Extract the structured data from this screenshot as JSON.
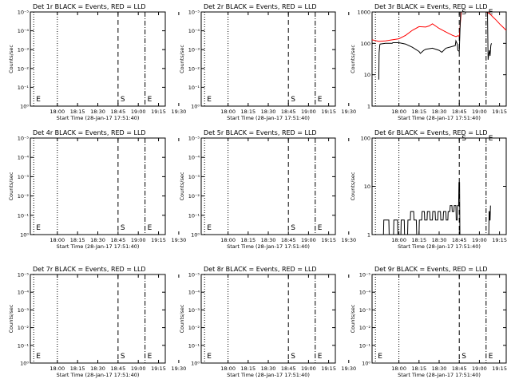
{
  "chart_data": [
    {
      "type": "line",
      "title": "Det 1r BLACK = Events, RED = LLD",
      "xlabel": "Start Time (28-Jan-17 17:51:40)",
      "ylabel": "Counts/sec",
      "y_scale": "linear",
      "ylim": [
        0,
        5
      ],
      "ytick_labels": [
        "10⁰",
        "10⁻¹",
        "10⁻²",
        "10⁻³",
        "10⁻⁴",
        "10⁻⁵"
      ],
      "xlim_min": [
        0,
        40
      ],
      "xtick_labels": [
        "18:00",
        "18:15",
        "18:30",
        "18:45",
        "19:00",
        "19:15",
        "19:30"
      ],
      "markers": [
        {
          "label": "E",
          "t": 1,
          "style": "dotted"
        },
        {
          "label": "",
          "t": 8,
          "style": "dotted"
        },
        {
          "label": "S",
          "t": 26,
          "style": "dashed"
        },
        {
          "label": "E",
          "t": 34,
          "style": "dashdot"
        }
      ],
      "series": []
    },
    {
      "type": "line",
      "title": "Det 2r BLACK = Events, RED = LLD",
      "xlabel": "Start Time (28-Jan-17 17:51:40)",
      "ylabel": "Counts/sec",
      "y_scale": "linear",
      "ylim": [
        0,
        5
      ],
      "ytick_labels": [
        "10⁰",
        "10⁻¹",
        "10⁻²",
        "10⁻³",
        "10⁻⁴",
        "10⁻⁵"
      ],
      "xlim_min": [
        0,
        40
      ],
      "xtick_labels": [
        "18:00",
        "18:15",
        "18:30",
        "18:45",
        "19:00",
        "19:15",
        "19:30"
      ],
      "markers": [
        {
          "label": "E",
          "t": 1,
          "style": "dotted"
        },
        {
          "label": "",
          "t": 8,
          "style": "dotted"
        },
        {
          "label": "S",
          "t": 26,
          "style": "dashed"
        },
        {
          "label": "E",
          "t": 34,
          "style": "dashdot"
        }
      ],
      "series": []
    },
    {
      "type": "line",
      "title": "Det 3r BLACK = Events, RED = LLD",
      "xlabel": "Start Time (28-Jan-17 17:51:40)",
      "ylabel": "Counts/sec",
      "y_scale": "log",
      "ylim": [
        1,
        1000
      ],
      "ytick_labels": [
        "1",
        "10",
        "100",
        "1000"
      ],
      "xlim_min": [
        0,
        40
      ],
      "xtick_labels": [
        "18:00",
        "18:15",
        "18:30",
        "18:45",
        "19:00",
        "19:15",
        "19:30"
      ],
      "markers": [
        {
          "label": "",
          "t": 1,
          "style": "dotted"
        },
        {
          "label": "",
          "t": 8,
          "style": "dotted"
        },
        {
          "label": "S",
          "t": 26,
          "style": "dashed"
        },
        {
          "label": "E",
          "t": 34,
          "style": "dashdot"
        }
      ],
      "series": [
        {
          "color": "#ff0000",
          "x": [
            0,
            2,
            4,
            6,
            8,
            10,
            12,
            14,
            16,
            17,
            18,
            20,
            22,
            24,
            25,
            25.6,
            26,
            26.6,
            27.4,
            28,
            29,
            30,
            31,
            32,
            33,
            34,
            35,
            36,
            37,
            38,
            39,
            40
          ],
          "y": [
            130,
            115,
            120,
            130,
            140,
            180,
            260,
            340,
            330,
            360,
            420,
            300,
            230,
            180,
            165,
            175,
            170,
            1000,
            1000,
            1000,
            1000,
            1000,
            1000,
            1000,
            1000,
            1000,
            900,
            700,
            550,
            420,
            330,
            260
          ]
        },
        {
          "color": "#000000",
          "x": [
            2,
            2.1,
            2.3,
            2.4,
            4,
            6,
            6.2,
            8,
            10,
            12,
            14,
            14.4,
            15.4,
            16,
            18,
            20,
            20.8,
            22,
            24,
            24.8,
            25,
            25.4,
            25.6,
            26,
            26.4,
            27.4,
            28,
            30,
            32,
            33.8,
            34.4,
            34.6,
            34.8,
            35,
            35.2,
            35.4,
            35.6
          ],
          "y": [
            7,
            50,
            90,
            95,
            100,
            100,
            105,
            105,
            95,
            75,
            55,
            48,
            60,
            65,
            70,
            60,
            52,
            70,
            80,
            85,
            120,
            95,
            60,
            55,
            1000,
            1000,
            1000,
            1000,
            1000,
            1000,
            1000,
            30,
            45,
            60,
            40,
            85,
            100
          ]
        }
      ]
    },
    {
      "type": "line",
      "title": "Det 4r BLACK = Events, RED = LLD",
      "xlabel": "Start Time (28-Jan-17 17:51:40)",
      "ylabel": "Counts/sec",
      "y_scale": "linear",
      "ylim": [
        0,
        5
      ],
      "ytick_labels": [
        "10⁰",
        "10⁻¹",
        "10⁻²",
        "10⁻³",
        "10⁻⁴",
        "10⁻⁵"
      ],
      "xlim_min": [
        0,
        40
      ],
      "xtick_labels": [
        "18:00",
        "18:15",
        "18:30",
        "18:45",
        "19:00",
        "19:15",
        "19:30"
      ],
      "markers": [
        {
          "label": "E",
          "t": 1,
          "style": "dotted"
        },
        {
          "label": "",
          "t": 8,
          "style": "dotted"
        },
        {
          "label": "S",
          "t": 26,
          "style": "dashed"
        },
        {
          "label": "E",
          "t": 34,
          "style": "dashdot"
        }
      ],
      "series": []
    },
    {
      "type": "line",
      "title": "Det 5r BLACK = Events, RED = LLD",
      "xlabel": "Start Time (28-Jan-17 17:51:40)",
      "ylabel": "Counts/sec",
      "y_scale": "linear",
      "ylim": [
        0,
        5
      ],
      "ytick_labels": [
        "10⁰",
        "10⁻¹",
        "10⁻²",
        "10⁻³",
        "10⁻⁴",
        "10⁻⁵"
      ],
      "xlim_min": [
        0,
        40
      ],
      "xtick_labels": [
        "18:00",
        "18:15",
        "18:30",
        "18:45",
        "19:00",
        "19:15",
        "19:30"
      ],
      "markers": [
        {
          "label": "E",
          "t": 1,
          "style": "dotted"
        },
        {
          "label": "",
          "t": 8,
          "style": "dotted"
        },
        {
          "label": "S",
          "t": 26,
          "style": "dashed"
        },
        {
          "label": "E",
          "t": 34,
          "style": "dashdot"
        }
      ],
      "series": []
    },
    {
      "type": "line",
      "title": "Det 6r BLACK = Events, RED = LLD",
      "xlabel": "Start Time (28-Jan-17 17:51:40)",
      "ylabel": "Counts/sec",
      "y_scale": "log",
      "ylim": [
        1,
        100
      ],
      "ytick_labels": [
        "1",
        "10",
        "100"
      ],
      "xlim_min": [
        0,
        40
      ],
      "xtick_labels": [
        "18:00",
        "18:15",
        "18:30",
        "18:45",
        "19:00",
        "19:15",
        "19:30"
      ],
      "markers": [
        {
          "label": "",
          "t": 1,
          "style": "dotted"
        },
        {
          "label": "",
          "t": 8,
          "style": "dotted"
        },
        {
          "label": "S",
          "t": 26,
          "style": "dashed"
        },
        {
          "label": "E",
          "t": 34,
          "style": "dashdot"
        }
      ],
      "series": [
        {
          "color": "#000000",
          "x": [
            3.4,
            3.5,
            5,
            5.1,
            6.4,
            6.5,
            7.6,
            7.7,
            8.6,
            8.7,
            9.6,
            9.7,
            10.6,
            10.7,
            11.4,
            11.5,
            12.4,
            12.5,
            13.2,
            13.3,
            14,
            14.1,
            14.8,
            14.9,
            15.6,
            15.7,
            16.4,
            16.5,
            17.2,
            17.3,
            18,
            18.1,
            18.8,
            18.9,
            19.6,
            19.7,
            20.4,
            20.5,
            21.2,
            21.3,
            22,
            22.1,
            22.6,
            22.7,
            23.2,
            23.3,
            23.8,
            23.9,
            24.4,
            24.5,
            25,
            25.1,
            25.4,
            25.5,
            25.8,
            25.9,
            26.1,
            26.2,
            34.8,
            34.9,
            35,
            35.1,
            35.2,
            35.3
          ],
          "y": [
            1,
            2,
            2,
            1,
            1,
            2,
            2,
            1,
            1,
            2,
            2,
            1,
            1,
            2,
            2,
            3,
            3,
            2,
            2,
            1,
            1,
            2,
            2,
            3,
            3,
            2,
            2,
            3,
            3,
            2,
            2,
            3,
            3,
            2,
            2,
            3,
            3,
            2,
            2,
            3,
            3,
            2,
            2,
            3,
            3,
            4,
            4,
            3,
            3,
            4,
            4,
            2,
            2,
            4,
            4,
            12,
            12,
            1,
            1,
            3,
            3,
            2,
            2,
            4
          ]
        }
      ]
    },
    {
      "type": "line",
      "title": "Det 7r BLACK = Events, RED = LLD",
      "xlabel": "Start Time (28-Jan-17 17:51:40)",
      "ylabel": "Counts/sec",
      "y_scale": "linear",
      "ylim": [
        0,
        5
      ],
      "ytick_labels": [
        "10⁰",
        "10⁻¹",
        "10⁻²",
        "10⁻³",
        "10⁻⁴",
        "10⁻⁵"
      ],
      "xlim_min": [
        0,
        40
      ],
      "xtick_labels": [
        "18:00",
        "18:15",
        "18:30",
        "18:45",
        "19:00",
        "19:15",
        "19:30"
      ],
      "markers": [
        {
          "label": "E",
          "t": 1,
          "style": "dotted"
        },
        {
          "label": "",
          "t": 8,
          "style": "dotted"
        },
        {
          "label": "S",
          "t": 26,
          "style": "dashed"
        },
        {
          "label": "E",
          "t": 34,
          "style": "dashdot"
        }
      ],
      "series": []
    },
    {
      "type": "line",
      "title": "Det 8r BLACK = Events, RED = LLD",
      "xlabel": "Start Time (28-Jan-17 17:51:40)",
      "ylabel": "Counts/sec",
      "y_scale": "linear",
      "ylim": [
        0,
        5
      ],
      "ytick_labels": [
        "10⁰",
        "10⁻¹",
        "10⁻²",
        "10⁻³",
        "10⁻⁴",
        "10⁻⁵"
      ],
      "xlim_min": [
        0,
        40
      ],
      "xtick_labels": [
        "18:00",
        "18:15",
        "18:30",
        "18:45",
        "19:00",
        "19:15",
        "19:30"
      ],
      "markers": [
        {
          "label": "E",
          "t": 1,
          "style": "dotted"
        },
        {
          "label": "",
          "t": 8,
          "style": "dotted"
        },
        {
          "label": "S",
          "t": 26,
          "style": "dashed"
        },
        {
          "label": "E",
          "t": 34,
          "style": "dashdot"
        }
      ],
      "series": []
    },
    {
      "type": "line",
      "title": "Det 9r BLACK = Events, RED = LLD",
      "xlabel": "Start Time (28-Jan-17 17:51:40)",
      "ylabel": "Counts/sec",
      "y_scale": "linear",
      "ylim": [
        0,
        5
      ],
      "ytick_labels": [
        "10⁰",
        "10⁻¹",
        "10⁻²",
        "10⁻³",
        "10⁻⁴",
        "10⁻⁵"
      ],
      "xlim_min": [
        0,
        40
      ],
      "xtick_labels": [
        "18:00",
        "18:15",
        "18:30",
        "18:45",
        "19:00",
        "19:15",
        "19:30"
      ],
      "markers": [
        {
          "label": "E",
          "t": 1,
          "style": "dotted"
        },
        {
          "label": "",
          "t": 8,
          "style": "dotted"
        },
        {
          "label": "S",
          "t": 26,
          "style": "dashed"
        },
        {
          "label": "E",
          "t": 34,
          "style": "dashdot"
        }
      ],
      "series": []
    }
  ]
}
